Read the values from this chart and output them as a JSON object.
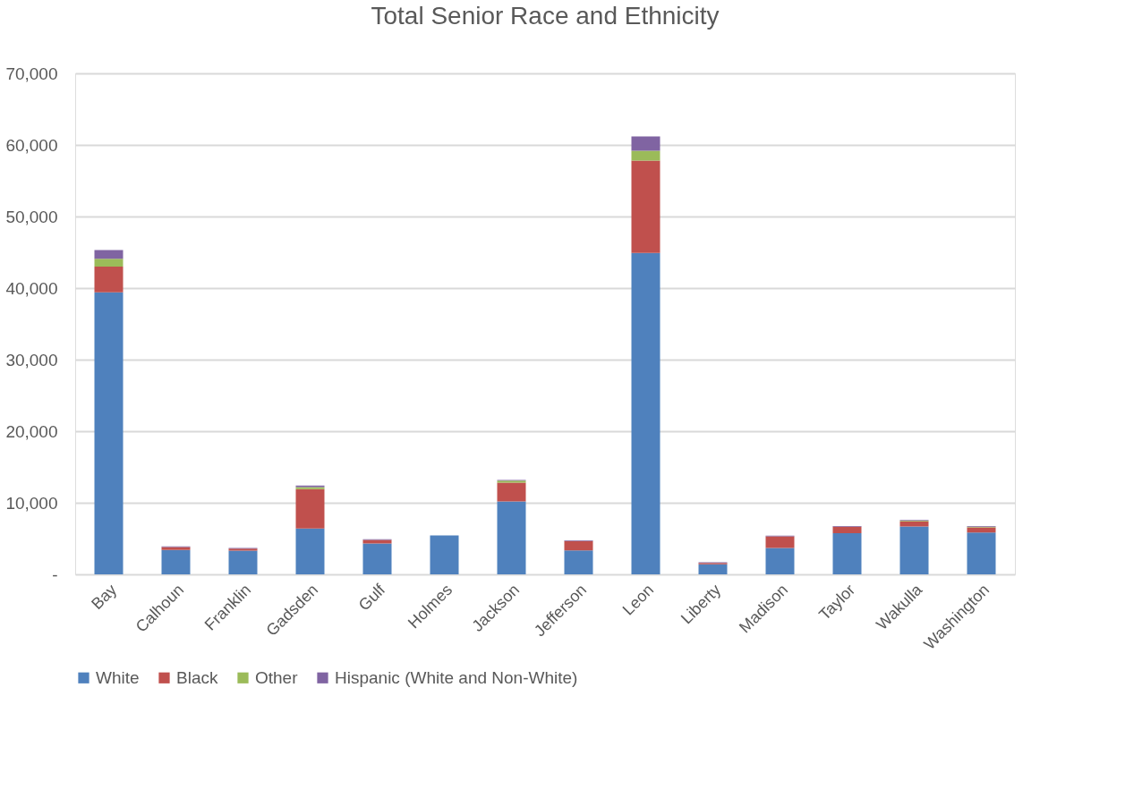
{
  "chart_data": {
    "type": "bar",
    "title": "Total Senior Race and Ethnicity",
    "stacked": true,
    "categories": [
      "Bay",
      "Calhoun",
      "Franklin",
      "Gadsden",
      "Gulf",
      "Holmes",
      "Jackson",
      "Jefferson",
      "Leon",
      "Liberty",
      "Madison",
      "Taylor",
      "Wakulla",
      "Washington"
    ],
    "series": [
      {
        "name": "White",
        "color": "#4f81bd",
        "values": [
          39400,
          3400,
          3300,
          6400,
          4300,
          5450,
          10200,
          3350,
          44900,
          1400,
          3700,
          5750,
          6700,
          5850
        ]
      },
      {
        "name": "Black",
        "color": "#c0504d",
        "values": [
          3600,
          400,
          300,
          5500,
          500,
          null,
          2600,
          1300,
          12900,
          200,
          1600,
          900,
          700,
          700
        ]
      },
      {
        "name": "Other",
        "color": "#9bbb59",
        "values": [
          1100,
          null,
          null,
          300,
          null,
          null,
          300,
          null,
          1400,
          null,
          null,
          null,
          100,
          100
        ]
      },
      {
        "name": "Hispanic (White and Non-White)",
        "color": "#8064a2",
        "values": [
          1200,
          100,
          100,
          200,
          100,
          null,
          100,
          100,
          2000,
          100,
          100,
          100,
          100,
          100
        ]
      }
    ],
    "ylim": [
      0,
      70000
    ],
    "yticks": [
      {
        "value": 0,
        "label": "-"
      },
      {
        "value": 10000,
        "label": "10,000"
      },
      {
        "value": 20000,
        "label": "20,000"
      },
      {
        "value": 30000,
        "label": "30,000"
      },
      {
        "value": 40000,
        "label": "40,000"
      },
      {
        "value": 50000,
        "label": "50,000"
      },
      {
        "value": 60000,
        "label": "60,000"
      },
      {
        "value": 70000,
        "label": "70,000"
      }
    ],
    "grid": "y",
    "legend": "bottom"
  }
}
